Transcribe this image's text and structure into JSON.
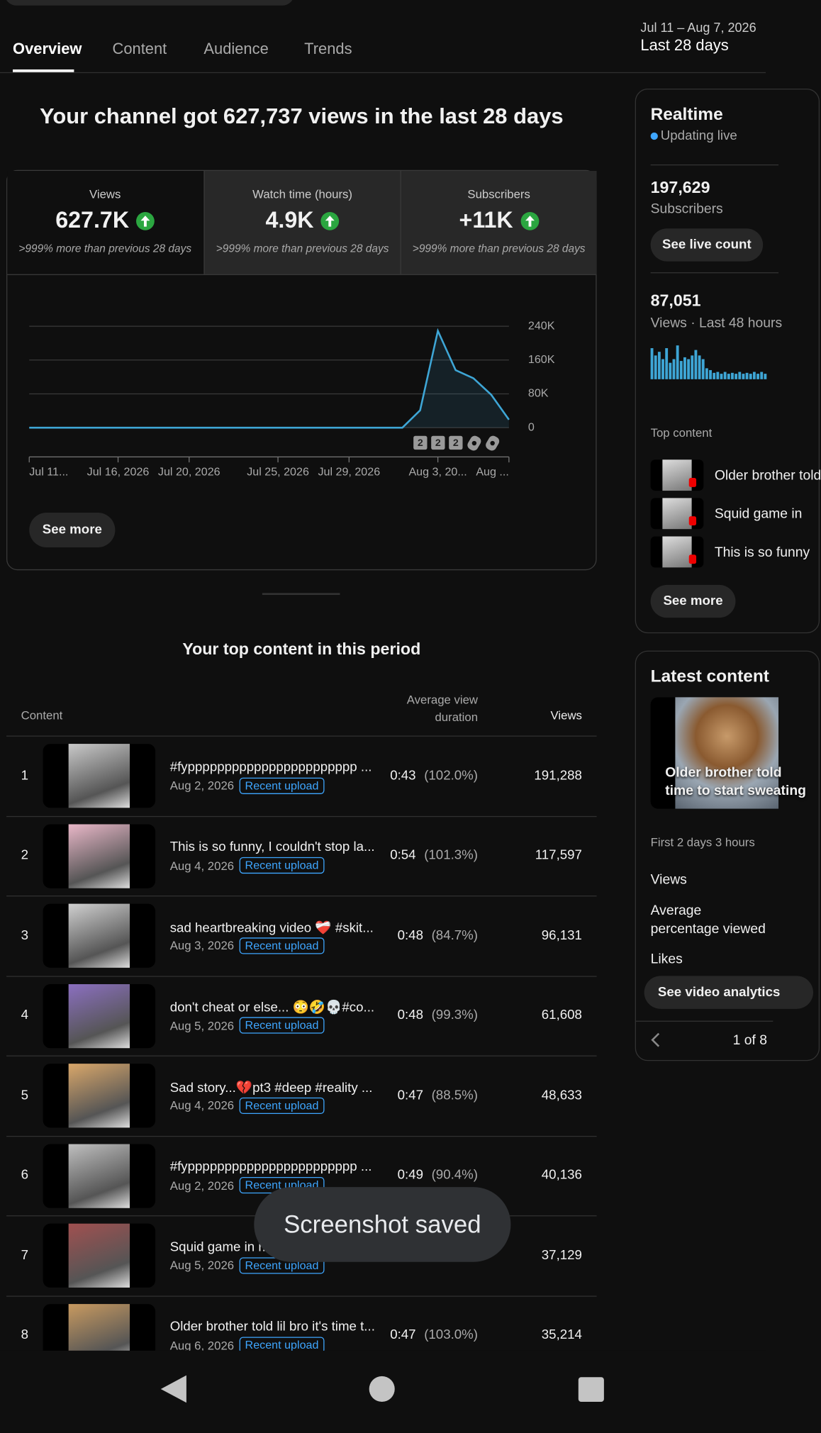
{
  "tabs": [
    "Overview",
    "Content",
    "Audience",
    "Trends"
  ],
  "date_range": {
    "dates": "Jul 11 – Aug 7, 2026",
    "label": "Last 28 days"
  },
  "headline": "Your channel got 627,737 views in the last 28 days",
  "metrics": [
    {
      "label": "Views",
      "value": "627.7K",
      "change": ">999% more than previous 28 days"
    },
    {
      "label": "Watch time (hours)",
      "value": "4.9K",
      "change": ">999% more than previous 28 days"
    },
    {
      "label": "Subscribers",
      "value": "+11K",
      "change": ">999% more than previous 28 days"
    }
  ],
  "chart_data": {
    "type": "line",
    "categories": [
      "Jul 11...",
      null,
      null,
      null,
      null,
      "Jul 16, 2026",
      null,
      null,
      null,
      "Jul 20, 2026",
      null,
      null,
      null,
      null,
      "Jul 25, 2026",
      null,
      null,
      null,
      "Jul 29, 2026",
      null,
      null,
      null,
      null,
      "Aug 3, 20...",
      null,
      null,
      null,
      "Aug ..."
    ],
    "series": [
      {
        "name": "Views",
        "color": "#3ea6d6",
        "values": [
          0,
          0,
          0,
          0,
          0,
          0,
          0,
          0,
          0,
          0,
          0,
          0,
          0,
          0,
          0,
          0,
          0,
          0,
          0,
          0,
          0,
          0,
          41000,
          229000,
          136000,
          117000,
          78000,
          19000
        ]
      }
    ],
    "ylim": [
      0,
      240000
    ],
    "yticks": [
      0,
      {
        "value": 80000,
        "label": "80K"
      },
      {
        "value": 160000,
        "label": "160K"
      },
      {
        "value": 240000,
        "label": "240K"
      }
    ],
    "grid": true
  },
  "chart_markers": [
    "2",
    "2",
    "2"
  ],
  "see_more": "See more",
  "top_content": {
    "title": "Your top content in this period",
    "columns": [
      "Content",
      "Average view duration",
      "Views"
    ],
    "rows": [
      {
        "rank": 1,
        "title": "#fyppppppppppppppppppppppp ...",
        "date": "Aug 2, 2026",
        "badge": "Recent upload",
        "duration": "0:43",
        "percent": "(102.0%)",
        "views": "191,288"
      },
      {
        "rank": 2,
        "title": "This is so funny, I couldn't stop la...",
        "date": "Aug 4, 2026",
        "badge": "Recent upload",
        "duration": "0:54",
        "percent": "(101.3%)",
        "views": "117,597"
      },
      {
        "rank": 3,
        "title": "sad heartbreaking video ❤️‍🩹 #skit...",
        "date": "Aug 3, 2026",
        "badge": "Recent upload",
        "duration": "0:48",
        "percent": "(84.7%)",
        "views": "96,131"
      },
      {
        "rank": 4,
        "title": "don't cheat or else... 😳🤣💀#co...",
        "date": "Aug 5, 2026",
        "badge": "Recent upload",
        "duration": "0:48",
        "percent": "(99.3%)",
        "views": "61,608"
      },
      {
        "rank": 5,
        "title": "Sad story...💔pt3 #deep #reality ...",
        "date": "Aug 4, 2026",
        "badge": "Recent upload",
        "duration": "0:47",
        "percent": "(88.5%)",
        "views": "48,633"
      },
      {
        "rank": 6,
        "title": "#fyppppppppppppppppppppppp ...",
        "date": "Aug 2, 2026",
        "badge": "Recent upload",
        "duration": "0:49",
        "percent": "(90.4%)",
        "views": "40,136"
      },
      {
        "rank": 7,
        "title": "Squid game in r...",
        "date": "Aug 5, 2026",
        "badge": "Recent upload",
        "views": "37,129"
      },
      {
        "rank": 8,
        "title": "Older brother told lil bro it's time t...",
        "date": "Aug 6, 2026",
        "badge": "Recent upload",
        "duration": "0:47",
        "percent": "(103.0%)",
        "views": "35,214"
      }
    ]
  },
  "realtime": {
    "title": "Realtime",
    "status": "Updating live",
    "subscribers": "197,629",
    "subscribers_label": "Subscribers",
    "live_button": "See live count",
    "views": "87,051",
    "views_label": "Views · Last 48 hours",
    "bars": [
      34,
      26,
      30,
      22,
      34,
      18,
      22,
      37,
      20,
      24,
      22,
      26,
      32,
      26,
      22,
      12,
      10,
      7,
      8,
      6,
      8,
      6,
      7,
      6,
      8,
      6,
      7,
      6,
      8,
      6,
      8,
      6
    ],
    "top_content_label": "Top content",
    "top_content": [
      "Older brother told",
      "Squid game in",
      "This is so funny"
    ],
    "see_more": "See more"
  },
  "latest_content": {
    "title": "Latest content",
    "thumbnail_text": [
      "Older brother told",
      "time to start sweating"
    ],
    "period": "First 2 days 3 hours",
    "metrics": [
      "Views",
      "Average percentage viewed",
      "Likes"
    ],
    "button": "See video analytics",
    "pager": "1 of 8"
  },
  "toast": "Screenshot saved"
}
